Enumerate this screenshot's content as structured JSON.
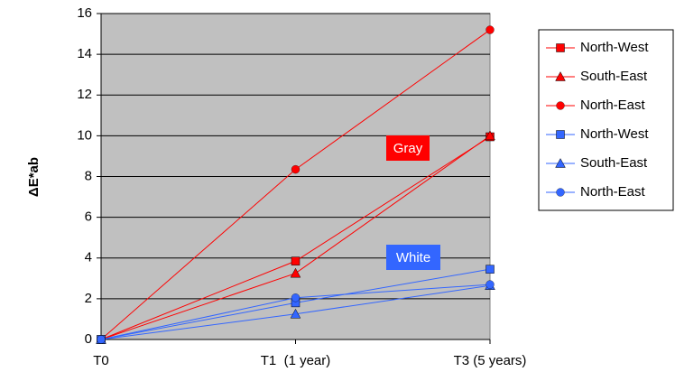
{
  "chart_data": {
    "type": "line",
    "y_label": "ΔE*ab",
    "categories": [
      "T0",
      "T1  (1 year)",
      "T3 (5 years)"
    ],
    "series": [
      {
        "name": "North-West",
        "color": "#ff0000",
        "marker": "square",
        "values": [
          0,
          3.85,
          9.95
        ]
      },
      {
        "name": "South-East",
        "color": "#ff0000",
        "marker": "triangle",
        "values": [
          0,
          3.25,
          10.0
        ]
      },
      {
        "name": "North-East",
        "color": "#ff0000",
        "marker": "circle",
        "values": [
          0,
          8.35,
          15.2
        ]
      },
      {
        "name": "North-West",
        "color": "#3366ff",
        "marker": "square",
        "values": [
          0,
          1.8,
          3.45
        ]
      },
      {
        "name": "South-East",
        "color": "#3366ff",
        "marker": "triangle",
        "values": [
          0,
          1.25,
          2.65
        ]
      },
      {
        "name": "North-East",
        "color": "#3366ff",
        "marker": "circle",
        "values": [
          0,
          2.05,
          2.7
        ]
      }
    ],
    "annotations": [
      {
        "text": "Gray",
        "color": "#ff0000"
      },
      {
        "text": "White",
        "color": "#3366ff"
      }
    ],
    "ylim": [
      0,
      16
    ],
    "yticks": [
      0,
      2,
      4,
      6,
      8,
      10,
      12,
      14,
      16
    ],
    "grid": true,
    "plot_background": "#c0c0c0",
    "legend": "right"
  }
}
